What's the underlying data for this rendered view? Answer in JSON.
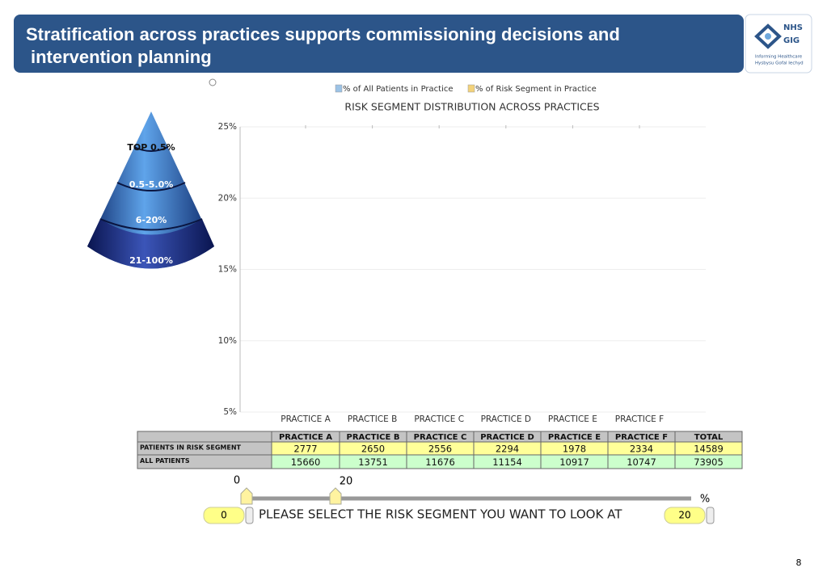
{
  "header": {
    "title_line1": "Stratification across practices supports commissioning decisions and",
    "title_line2": "intervention planning",
    "logo": {
      "nhs": "NHS",
      "gig": "GIG",
      "caption1": "Informing Healthcare",
      "caption2": "Hysbysu Gofal Iechyd"
    }
  },
  "pyramid": {
    "labels": [
      "TOP 0.5%",
      "0.5-5.0%",
      "6-20%",
      "21-100%"
    ]
  },
  "chart_data": {
    "type": "bar",
    "title": "RISK SEGMENT DISTRIBUTION ACROSS PRACTICES",
    "categories": [
      "PRACTICE A",
      "PRACTICE B",
      "PRACTICE C",
      "PRACTICE D",
      "PRACTICE E",
      "PRACTICE F"
    ],
    "series": [
      {
        "name": "% of All Patients in Practice",
        "color": "#9cc3e6"
      },
      {
        "name": "% of Risk Segment in Practice",
        "color": "#f3d27a"
      }
    ],
    "ylim": [
      5,
      25
    ],
    "yticks": [
      {
        "value": 5,
        "label": "5%"
      },
      {
        "value": 10,
        "label": "10%"
      },
      {
        "value": 15,
        "label": "15%"
      },
      {
        "value": 20,
        "label": "20%"
      },
      {
        "value": 25,
        "label": "25%"
      }
    ],
    "grid": true
  },
  "table": {
    "header": [
      "PRACTICE A",
      "PRACTICE B",
      "PRACTICE C",
      "PRACTICE D",
      "PRACTICE E",
      "PRACTICE F",
      "TOTAL"
    ],
    "rows": [
      [
        "PATIENTS IN RISK SEGMENT",
        "2777",
        "2650",
        "2556",
        "2294",
        "1978",
        "2334",
        "14589"
      ],
      [
        "ALL PATIENTS",
        "15660",
        "13751",
        "11676",
        "11154",
        "10917",
        "10747",
        "73905"
      ]
    ]
  },
  "slider": {
    "min_label": "0",
    "value_label": "20",
    "unit": "%",
    "from_input": "0",
    "to_input": "20",
    "prompt": "PLEASE SELECT THE RISK SEGMENT YOU WANT TO LOOK AT"
  },
  "page_number": "8"
}
